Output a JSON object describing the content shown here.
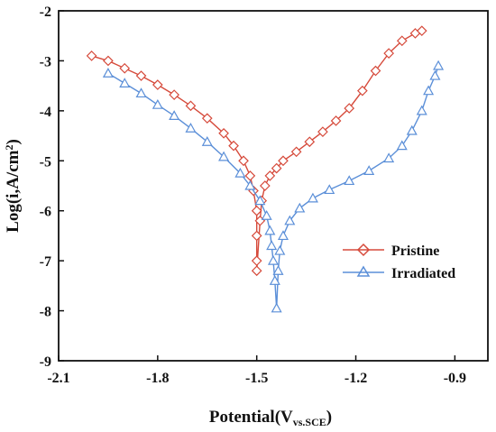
{
  "chart_data": {
    "type": "scatter",
    "xlabel_main": "Potential(V",
    "xlabel_sub": "vs.SCE",
    "xlabel_end": ")",
    "ylabel": "Log(i,A/cm",
    "ylabel_sup": "2",
    "ylabel_end": ")",
    "xlim": [
      -2.1,
      -0.8
    ],
    "ylim": [
      -9,
      -2
    ],
    "xticks": [
      -2.1,
      -1.8,
      -1.5,
      -1.2,
      -0.9
    ],
    "xtick_labels": [
      "-2.1",
      "-1.8",
      "-1.5",
      "-1.2",
      "-0.9"
    ],
    "yticks": [
      -9,
      -8,
      -7,
      -6,
      -5,
      -4,
      -3,
      -2
    ],
    "ytick_labels": [
      "-9",
      "-8",
      "-7",
      "-6",
      "-5",
      "-4",
      "-3",
      "-2"
    ],
    "grid": false,
    "legend_position": "right",
    "series": [
      {
        "name": "Pristine",
        "color": "#d64a3b",
        "marker": "diamond",
        "points": [
          [
            -2.0,
            -2.9
          ],
          [
            -1.95,
            -3.0
          ],
          [
            -1.9,
            -3.15
          ],
          [
            -1.85,
            -3.3
          ],
          [
            -1.8,
            -3.48
          ],
          [
            -1.75,
            -3.68
          ],
          [
            -1.7,
            -3.9
          ],
          [
            -1.65,
            -4.15
          ],
          [
            -1.6,
            -4.45
          ],
          [
            -1.57,
            -4.7
          ],
          [
            -1.54,
            -5.0
          ],
          [
            -1.52,
            -5.3
          ],
          [
            -1.51,
            -5.6
          ],
          [
            -1.5,
            -6.0
          ],
          [
            -1.5,
            -6.5
          ],
          [
            -1.5,
            -7.0
          ],
          [
            -1.5,
            -7.2
          ],
          [
            -1.49,
            -6.2
          ],
          [
            -1.485,
            -5.8
          ],
          [
            -1.475,
            -5.5
          ],
          [
            -1.46,
            -5.3
          ],
          [
            -1.44,
            -5.15
          ],
          [
            -1.42,
            -5.0
          ],
          [
            -1.38,
            -4.82
          ],
          [
            -1.34,
            -4.62
          ],
          [
            -1.3,
            -4.42
          ],
          [
            -1.26,
            -4.2
          ],
          [
            -1.22,
            -3.95
          ],
          [
            -1.18,
            -3.6
          ],
          [
            -1.14,
            -3.2
          ],
          [
            -1.1,
            -2.85
          ],
          [
            -1.06,
            -2.6
          ],
          [
            -1.02,
            -2.45
          ],
          [
            -1.0,
            -2.4
          ]
        ]
      },
      {
        "name": "Irradiated",
        "color": "#5b8fd8",
        "marker": "triangle",
        "points": [
          [
            -1.95,
            -3.25
          ],
          [
            -1.9,
            -3.45
          ],
          [
            -1.85,
            -3.65
          ],
          [
            -1.8,
            -3.88
          ],
          [
            -1.75,
            -4.1
          ],
          [
            -1.7,
            -4.35
          ],
          [
            -1.65,
            -4.62
          ],
          [
            -1.6,
            -4.92
          ],
          [
            -1.55,
            -5.25
          ],
          [
            -1.52,
            -5.5
          ],
          [
            -1.49,
            -5.8
          ],
          [
            -1.47,
            -6.1
          ],
          [
            -1.46,
            -6.4
          ],
          [
            -1.455,
            -6.7
          ],
          [
            -1.45,
            -7.0
          ],
          [
            -1.445,
            -7.4
          ],
          [
            -1.44,
            -7.95
          ],
          [
            -1.435,
            -7.2
          ],
          [
            -1.43,
            -6.8
          ],
          [
            -1.42,
            -6.5
          ],
          [
            -1.4,
            -6.2
          ],
          [
            -1.37,
            -5.95
          ],
          [
            -1.33,
            -5.75
          ],
          [
            -1.28,
            -5.58
          ],
          [
            -1.22,
            -5.4
          ],
          [
            -1.16,
            -5.2
          ],
          [
            -1.1,
            -4.95
          ],
          [
            -1.06,
            -4.7
          ],
          [
            -1.03,
            -4.4
          ],
          [
            -1.0,
            -4.0
          ],
          [
            -0.98,
            -3.6
          ],
          [
            -0.96,
            -3.3
          ],
          [
            -0.95,
            -3.1
          ]
        ]
      }
    ]
  }
}
